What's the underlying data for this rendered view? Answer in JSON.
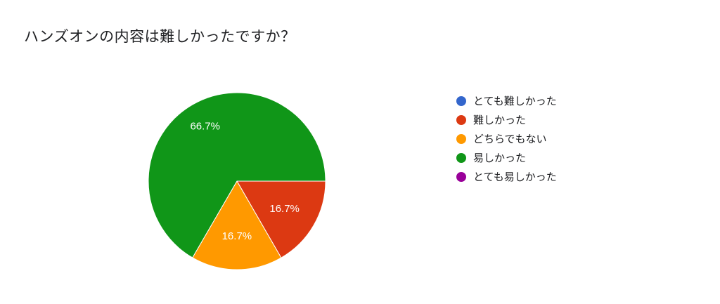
{
  "title": "ハンズオンの内容は難しかったですか？",
  "chart_data": {
    "type": "pie",
    "title": "ハンズオンの内容は難しかったですか？",
    "legend_position": "right",
    "slices": [
      {
        "label": "とても難しかった",
        "value": 0,
        "percent_label": "",
        "color": "#3366cc"
      },
      {
        "label": "難しかった",
        "value": 16.7,
        "percent_label": "16.7%",
        "color": "#dc3912"
      },
      {
        "label": "どちらでもない",
        "value": 16.7,
        "percent_label": "16.7%",
        "color": "#ff9900"
      },
      {
        "label": "易しかった",
        "value": 66.7,
        "percent_label": "66.7%",
        "color": "#109618"
      },
      {
        "label": "とても易しかった",
        "value": 0,
        "percent_label": "",
        "color": "#990099"
      }
    ]
  }
}
